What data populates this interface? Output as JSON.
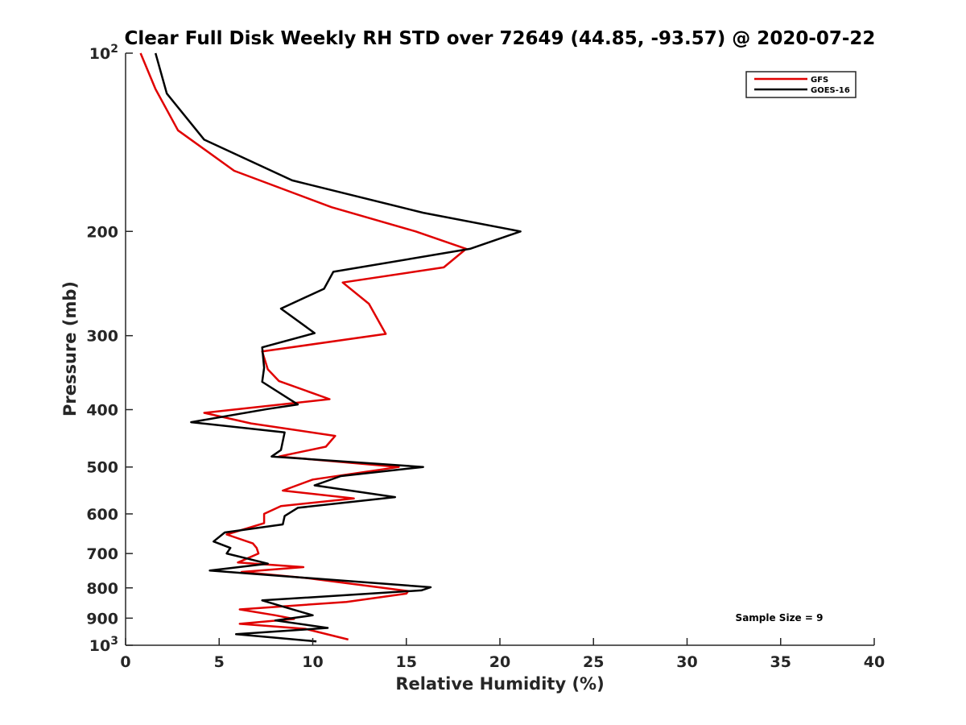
{
  "chart_data": {
    "type": "line",
    "title": "Clear Full Disk Weekly RH STD over 72649 (44.85, -93.57) @ 2020-07-22",
    "xlabel": "Relative Humidity (%)",
    "ylabel": "Pressure (mb)",
    "xlim": [
      0,
      40
    ],
    "ylim": [
      100,
      1000
    ],
    "yscale": "log",
    "y_reversed": true,
    "x_ticks": [
      "0",
      "5",
      "10",
      "15",
      "20",
      "25",
      "30",
      "35",
      "40"
    ],
    "y_ticks": [
      {
        "value": 100,
        "base": "10",
        "exp": "2"
      },
      {
        "value": 200,
        "label": "200"
      },
      {
        "value": 300,
        "label": "300"
      },
      {
        "value": 400,
        "label": "400"
      },
      {
        "value": 500,
        "label": "500"
      },
      {
        "value": 600,
        "label": "600"
      },
      {
        "value": 700,
        "label": "700"
      },
      {
        "value": 800,
        "label": "800"
      },
      {
        "value": 900,
        "label": "900"
      },
      {
        "value": 1000,
        "base": "10",
        "exp": "3"
      }
    ],
    "legend_position": "top-right",
    "annotation": "Sample Size = 9",
    "series": [
      {
        "name": "GFS",
        "color": "#e00000",
        "points": [
          [
            0.8,
            100
          ],
          [
            1.6,
            115
          ],
          [
            2.8,
            135
          ],
          [
            5.8,
            158
          ],
          [
            11,
            182
          ],
          [
            15.5,
            200
          ],
          [
            18.2,
            214
          ],
          [
            17,
            230
          ],
          [
            11.6,
            244
          ],
          [
            13,
            265
          ],
          [
            13.9,
            298
          ],
          [
            7.3,
            319
          ],
          [
            7.6,
            342
          ],
          [
            8.2,
            358
          ],
          [
            10.9,
            384
          ],
          [
            4.2,
            405
          ],
          [
            6.7,
            422
          ],
          [
            11.2,
            443
          ],
          [
            10.7,
            462
          ],
          [
            8.2,
            480
          ],
          [
            14.6,
            500
          ],
          [
            10,
            525
          ],
          [
            8.4,
            548
          ],
          [
            12.2,
            565
          ],
          [
            8.3,
            582
          ],
          [
            7.4,
            600
          ],
          [
            7.4,
            622
          ],
          [
            5.4,
            650
          ],
          [
            6.8,
            673
          ],
          [
            7,
            685
          ],
          [
            7.1,
            700
          ],
          [
            6,
            725
          ],
          [
            9.5,
            738
          ],
          [
            6.2,
            752
          ],
          [
            9.7,
            770
          ],
          [
            15.1,
            810
          ],
          [
            15,
            818
          ],
          [
            11.8,
            845
          ],
          [
            6.1,
            870
          ],
          [
            8,
            890
          ],
          [
            9,
            903
          ],
          [
            6.1,
            920
          ],
          [
            9.6,
            938
          ],
          [
            11.9,
            978
          ]
        ]
      },
      {
        "name": "GOES-16",
        "color": "#000000",
        "points": [
          [
            1.6,
            100
          ],
          [
            2.2,
            117
          ],
          [
            4.2,
            140
          ],
          [
            8.9,
            164
          ],
          [
            15.9,
            186
          ],
          [
            21.1,
            200
          ],
          [
            18.4,
            214
          ],
          [
            11.1,
            234
          ],
          [
            10.6,
            250
          ],
          [
            8.3,
            270
          ],
          [
            10.1,
            297
          ],
          [
            7.3,
            314
          ],
          [
            7.4,
            340
          ],
          [
            7.3,
            359
          ],
          [
            9.2,
            392
          ],
          [
            7.6,
            399
          ],
          [
            3.5,
            420
          ],
          [
            8.5,
            437
          ],
          [
            8.3,
            468
          ],
          [
            7.8,
            480
          ],
          [
            15.9,
            500
          ],
          [
            11.5,
            518
          ],
          [
            10.1,
            537
          ],
          [
            14.4,
            562
          ],
          [
            9.2,
            586
          ],
          [
            8.5,
            605
          ],
          [
            8.4,
            625
          ],
          [
            5.3,
            645
          ],
          [
            4.7,
            668
          ],
          [
            5.6,
            685
          ],
          [
            5.4,
            700
          ],
          [
            7.6,
            728
          ],
          [
            4.5,
            748
          ],
          [
            16.3,
            798
          ],
          [
            15.8,
            808
          ],
          [
            7.3,
            840
          ],
          [
            8.4,
            860
          ],
          [
            10,
            890
          ],
          [
            8,
            908
          ],
          [
            10.8,
            935
          ],
          [
            5.9,
            958
          ],
          [
            10.2,
            985
          ]
        ]
      }
    ]
  }
}
